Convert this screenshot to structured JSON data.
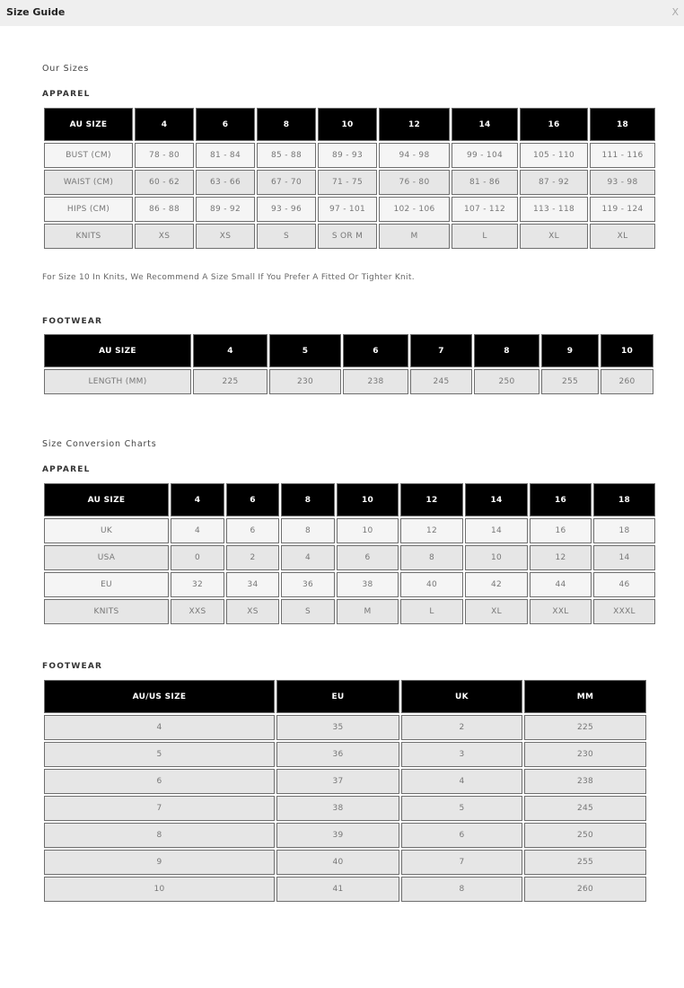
{
  "window": {
    "title": "Size Guide",
    "close_label": "X"
  },
  "our_sizes": {
    "heading": "Our Sizes",
    "apparel": {
      "label": "APPAREL",
      "headers": [
        "AU SIZE",
        "4",
        "6",
        "8",
        "10",
        "12",
        "14",
        "16",
        "18"
      ],
      "rows": [
        [
          "BUST (CM)",
          "78 - 80",
          "81 - 84",
          "85 - 88",
          "89 - 93",
          "94 - 98",
          "99 - 104",
          "105 - 110",
          "111 - 116"
        ],
        [
          "WAIST (CM)",
          "60 - 62",
          "63 - 66",
          "67 - 70",
          "71 - 75",
          "76 - 80",
          "81 - 86",
          "87 - 92",
          "93 - 98"
        ],
        [
          "HIPS (CM)",
          "86 - 88",
          "89 - 92",
          "93 - 96",
          "97 - 101",
          "102 - 106",
          "107 - 112",
          "113 - 118",
          "119 - 124"
        ],
        [
          "KNITS",
          "XS",
          "XS",
          "S",
          "S OR M",
          "M",
          "L",
          "XL",
          "XL"
        ]
      ],
      "note": "For Size 10 In Knits, We Recommend A Size Small If You Prefer A Fitted Or Tighter Knit."
    },
    "footwear": {
      "label": "FOOTWEAR",
      "headers": [
        "AU SIZE",
        "4",
        "5",
        "6",
        "7",
        "8",
        "9",
        "10"
      ],
      "rows": [
        [
          "LENGTH (MM)",
          "225",
          "230",
          "238",
          "245",
          "250",
          "255",
          "260"
        ]
      ]
    }
  },
  "conversion": {
    "heading": "Size Conversion Charts",
    "apparel": {
      "label": "APPAREL",
      "headers": [
        "AU SIZE",
        "4",
        "6",
        "8",
        "10",
        "12",
        "14",
        "16",
        "18"
      ],
      "rows": [
        [
          "UK",
          "4",
          "6",
          "8",
          "10",
          "12",
          "14",
          "16",
          "18"
        ],
        [
          "USA",
          "0",
          "2",
          "4",
          "6",
          "8",
          "10",
          "12",
          "14"
        ],
        [
          "EU",
          "32",
          "34",
          "36",
          "38",
          "40",
          "42",
          "44",
          "46"
        ],
        [
          "KNITS",
          "XXS",
          "XS",
          "S",
          "M",
          "L",
          "XL",
          "XXL",
          "XXXL"
        ]
      ]
    },
    "footwear": {
      "label": "FOOTWEAR",
      "headers": [
        "AU/US SIZE",
        "EU",
        "UK",
        "MM"
      ],
      "rows": [
        [
          "4",
          "35",
          "2",
          "225"
        ],
        [
          "5",
          "36",
          "3",
          "230"
        ],
        [
          "6",
          "37",
          "4",
          "238"
        ],
        [
          "7",
          "38",
          "5",
          "245"
        ],
        [
          "8",
          "39",
          "6",
          "250"
        ],
        [
          "9",
          "40",
          "7",
          "255"
        ],
        [
          "10",
          "41",
          "8",
          "260"
        ]
      ]
    }
  }
}
